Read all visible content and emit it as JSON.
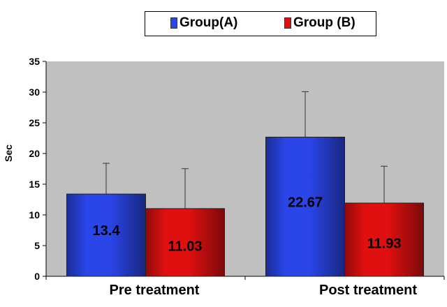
{
  "chart_data": {
    "type": "bar",
    "categories": [
      "Pre treatment",
      "Post treatment"
    ],
    "series": [
      {
        "name": "Group(A)",
        "values": [
          13.4,
          22.67
        ],
        "error": [
          5.0,
          7.4
        ],
        "color": "#2a45e8"
      },
      {
        "name": "Group (B)",
        "values": [
          11.03,
          11.93
        ],
        "error": [
          6.5,
          6.0
        ],
        "color": "#e01010"
      }
    ],
    "data_labels": [
      "13.4",
      "22.67",
      "11.03",
      "11.93"
    ],
    "xlabel": "",
    "ylabel": "Sec",
    "ylim": [
      0,
      35
    ],
    "yticks": [
      0,
      5,
      10,
      15,
      20,
      25,
      30,
      35
    ],
    "grid": false,
    "legend": "top-right",
    "plot_background": "#c0c0c0"
  }
}
